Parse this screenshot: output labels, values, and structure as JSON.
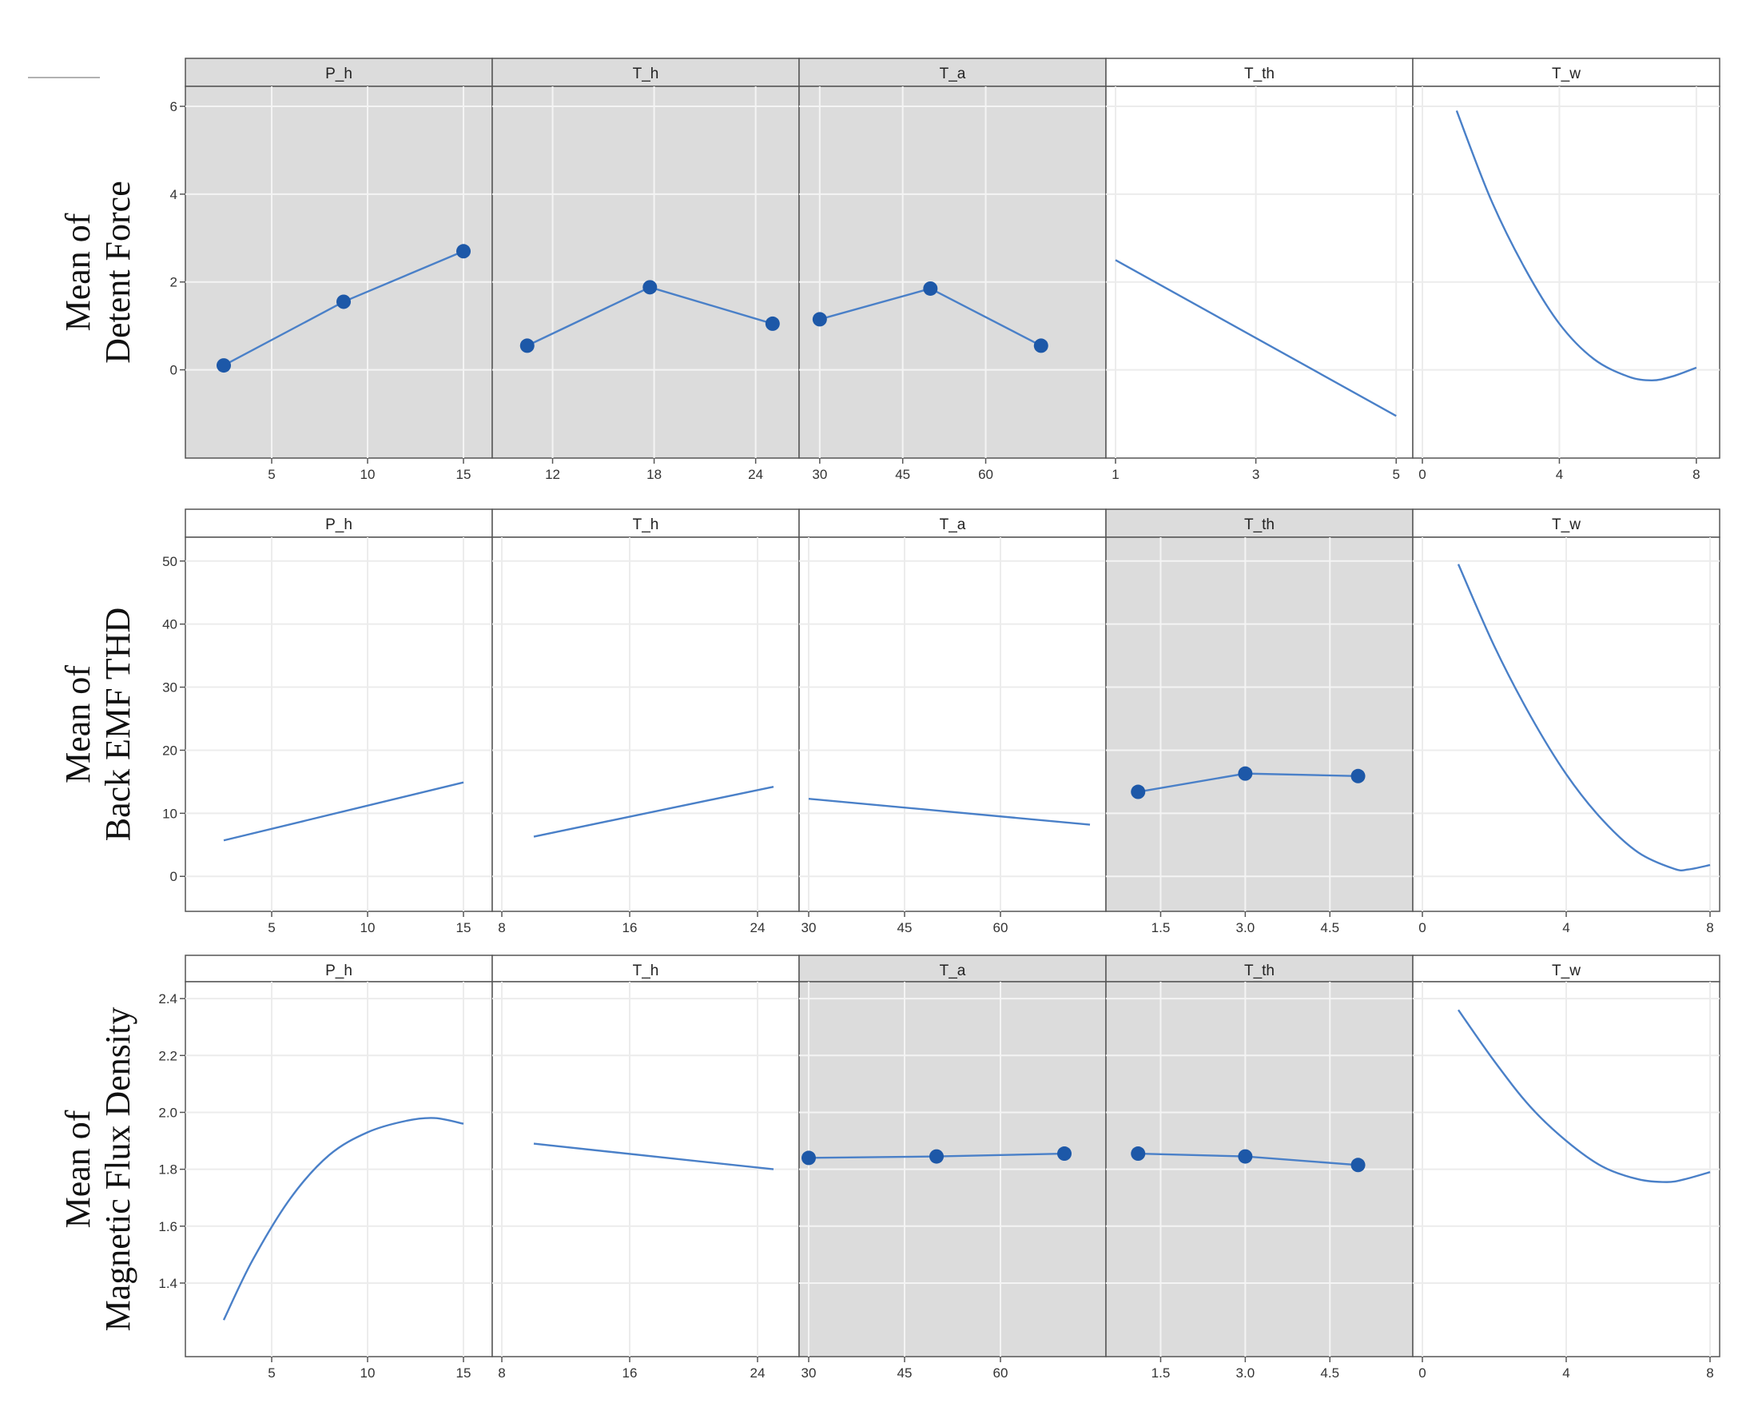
{
  "chart_data": {
    "type": "line",
    "title": "",
    "style": {
      "line_color": "#4a80c8",
      "marker_color": "#1d58a8",
      "highlight_panel_bg": "#dcdcdc",
      "panel_bg": "#ffffff",
      "grid_color_on_gray": "#f4f4f4",
      "grid_color_on_white": "#ececec"
    },
    "factors": [
      "P_h",
      "T_h",
      "T_a",
      "T_th",
      "T_w"
    ],
    "rows": [
      {
        "ylabel": [
          "Mean of",
          "Detent Force"
        ],
        "ylim": [
          -1.5,
          6.2
        ],
        "yticks": [
          0,
          2,
          4,
          6
        ],
        "ytick_labels": [
          "0",
          "2",
          "4",
          "6"
        ],
        "panels": [
          {
            "factor": "P_h",
            "highlight": true,
            "xlim": [
              1,
              16
            ],
            "xticks": [
              5,
              10,
              15
            ],
            "xtick_labels": [
              "5",
              "10",
              "15"
            ],
            "markers": true,
            "x": [
              2.5,
              8.75,
              15
            ],
            "y": [
              0.1,
              1.55,
              2.7
            ]
          },
          {
            "factor": "T_h",
            "highlight": true,
            "xlim": [
              9,
              26
            ],
            "xticks": [
              12,
              18,
              24
            ],
            "xtick_labels": [
              "12",
              "18",
              "24"
            ],
            "markers": true,
            "x": [
              10.5,
              17.75,
              25
            ],
            "y": [
              0.55,
              1.88,
              1.05
            ]
          },
          {
            "factor": "T_a",
            "highlight": true,
            "xlim": [
              28,
              80
            ],
            "xticks": [
              30,
              45,
              60
            ],
            "xtick_labels": [
              "30",
              "45",
              "60"
            ],
            "markers": true,
            "x": [
              30,
              50,
              70
            ],
            "y": [
              1.15,
              1.85,
              0.55
            ]
          },
          {
            "factor": "T_th",
            "highlight": false,
            "xlim": [
              1,
              5.1
            ],
            "xticks": [
              1,
              3,
              5
            ],
            "xtick_labels": [
              "1",
              "3",
              "5"
            ],
            "markers": false,
            "x": [
              1,
              5
            ],
            "y": [
              2.5,
              -1.05
            ]
          },
          {
            "factor": "T_w",
            "highlight": false,
            "xlim": [
              0,
              8.4
            ],
            "xticks": [
              0,
              4,
              8
            ],
            "xtick_labels": [
              "0",
              "4",
              "8"
            ],
            "markers": false,
            "x": [
              1,
              2,
              3,
              4,
              5,
              6,
              6.7,
              7.3,
              8
            ],
            "y": [
              5.9,
              3.88,
              2.3,
              1.05,
              0.25,
              -0.15,
              -0.24,
              -0.15,
              0.05
            ]
          }
        ]
      },
      {
        "ylabel": [
          "Mean of",
          "Back EMF THD"
        ],
        "ylim": [
          -2,
          52
        ],
        "yticks": [
          0,
          10,
          20,
          30,
          40,
          50
        ],
        "ytick_labels": [
          "0",
          "10",
          "20",
          "30",
          "40",
          "50"
        ],
        "panels": [
          {
            "factor": "P_h",
            "highlight": false,
            "xlim": [
              1,
              16
            ],
            "xticks": [
              5,
              10,
              15
            ],
            "xtick_labels": [
              "5",
              "10",
              "15"
            ],
            "markers": false,
            "x": [
              2.5,
              15
            ],
            "y": [
              5.7,
              14.9
            ]
          },
          {
            "factor": "T_h",
            "highlight": false,
            "xlim": [
              8,
              26
            ],
            "xticks": [
              8,
              16,
              24
            ],
            "xtick_labels": [
              "8",
              "16",
              "24"
            ],
            "markers": false,
            "x": [
              10,
              25
            ],
            "y": [
              6.3,
              14.2
            ]
          },
          {
            "factor": "T_a",
            "highlight": false,
            "xlim": [
              30,
              75
            ],
            "xticks": [
              30,
              45,
              60
            ],
            "xtick_labels": [
              "30",
              "45",
              "60"
            ],
            "markers": false,
            "x": [
              30,
              74
            ],
            "y": [
              12.3,
              8.2
            ]
          },
          {
            "factor": "T_th",
            "highlight": true,
            "xlim": [
              0.7,
              5.8
            ],
            "xticks": [
              1.5,
              3.0,
              4.5
            ],
            "xtick_labels": [
              "1.5",
              "3.0",
              "4.5"
            ],
            "markers": true,
            "x": [
              1.1,
              3.0,
              5.0
            ],
            "y": [
              13.4,
              16.3,
              15.9
            ]
          },
          {
            "factor": "T_w",
            "highlight": false,
            "xlim": [
              0,
              8
            ],
            "xticks": [
              0,
              4,
              8
            ],
            "xtick_labels": [
              "0",
              "4",
              "8"
            ],
            "markers": false,
            "x": [
              1,
              2,
              3,
              4,
              5,
              6,
              7,
              7.4,
              8
            ],
            "y": [
              49.5,
              36.5,
              25.5,
              16.2,
              9.0,
              3.8,
              1.2,
              1.1,
              1.8
            ]
          }
        ]
      },
      {
        "ylabel": [
          "Mean of",
          "Magnetic Flux Density"
        ],
        "ylim": [
          1.22,
          2.42
        ],
        "yticks": [
          1.4,
          1.6,
          1.8,
          2.0,
          2.2,
          2.4
        ],
        "ytick_labels": [
          "1.4",
          "1.6",
          "1.8",
          "2.0",
          "2.2",
          "2.4"
        ],
        "panels": [
          {
            "factor": "P_h",
            "highlight": false,
            "xlim": [
              1,
              16
            ],
            "xticks": [
              5,
              10,
              15
            ],
            "xtick_labels": [
              "5",
              "10",
              "15"
            ],
            "markers": false,
            "x": [
              2.5,
              4,
              6,
              8,
              10,
              12,
              13.5,
              15
            ],
            "y": [
              1.27,
              1.48,
              1.7,
              1.85,
              1.93,
              1.97,
              1.98,
              1.96
            ]
          },
          {
            "factor": "T_h",
            "highlight": false,
            "xlim": [
              8,
              26
            ],
            "xticks": [
              8,
              16,
              24
            ],
            "xtick_labels": [
              "8",
              "16",
              "24"
            ],
            "markers": false,
            "x": [
              10,
              25
            ],
            "y": [
              1.89,
              1.8
            ]
          },
          {
            "factor": "T_a",
            "highlight": true,
            "xlim": [
              30,
              75
            ],
            "xticks": [
              30,
              45,
              60
            ],
            "xtick_labels": [
              "30",
              "45",
              "60"
            ],
            "markers": true,
            "x": [
              30,
              50,
              70
            ],
            "y": [
              1.84,
              1.845,
              1.855
            ]
          },
          {
            "factor": "T_th",
            "highlight": true,
            "xlim": [
              0.7,
              5.8
            ],
            "xticks": [
              1.5,
              3.0,
              4.5
            ],
            "xtick_labels": [
              "1.5",
              "3.0",
              "4.5"
            ],
            "markers": true,
            "x": [
              1.1,
              3.0,
              5.0
            ],
            "y": [
              1.855,
              1.845,
              1.815
            ]
          },
          {
            "factor": "T_w",
            "highlight": false,
            "xlim": [
              0,
              8
            ],
            "xticks": [
              0,
              4,
              8
            ],
            "xtick_labels": [
              "0",
              "4",
              "8"
            ],
            "markers": false,
            "x": [
              1,
              2,
              3,
              4,
              5,
              6,
              6.8,
              7.3,
              8
            ],
            "y": [
              2.36,
              2.18,
              2.02,
              1.9,
              1.81,
              1.765,
              1.755,
              1.765,
              1.79
            ]
          }
        ]
      }
    ]
  }
}
